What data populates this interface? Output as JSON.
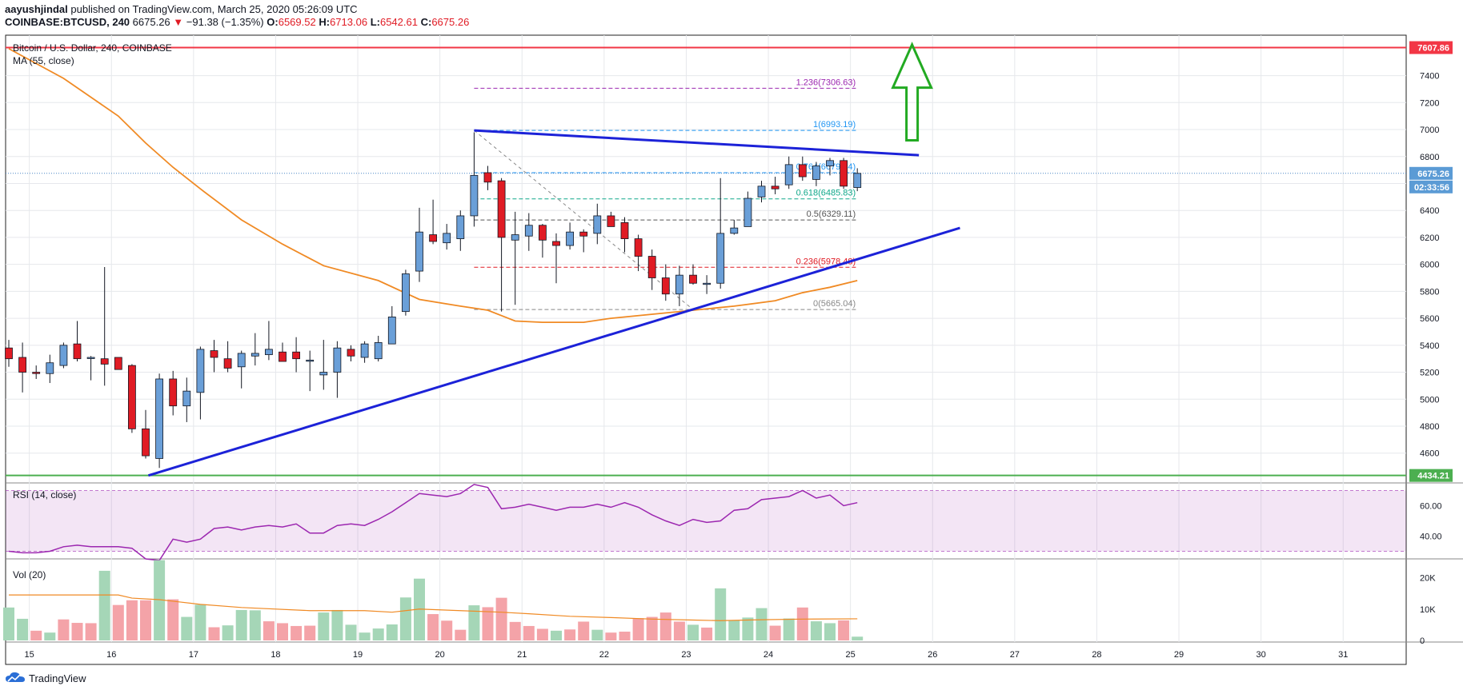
{
  "header": {
    "author": "aayushjindal",
    "published_text": "published on TradingView.com, March 25, 2020 05:26:09 UTC",
    "symbol": "COINBASE:BTCUSD, 240",
    "last": "6675.26",
    "change": "−91.38 (−1.35%)",
    "o_label": "O:",
    "o_value": "6569.52",
    "h_label": "H:",
    "h_value": "6713.06",
    "l_label": "L:",
    "l_value": "6542.61",
    "c_label": "C:",
    "c_value": "6675.26"
  },
  "pane_labels": {
    "main_title": "Bitcoin / U.S. Dollar, 240, COINBASE",
    "ma": "MA (55, close)",
    "rsi": "RSI (14, close)",
    "vol": "Vol (20)"
  },
  "footer": {
    "brand": "TradingView"
  },
  "colors": {
    "up": "#6a9fd8",
    "down": "#e01b24",
    "ma": "#f08a24",
    "trend": "#1c22d8",
    "resistance": "#f23645",
    "support": "#4caf50",
    "arrow": "#22aa22",
    "rsi": "#9c27b0",
    "vol_up": "#a5d6b7",
    "vol_down": "#f4a3a8"
  },
  "chart_data": [
    {
      "type": "candlestick",
      "title": "Bitcoin / U.S. Dollar, 240, COINBASE",
      "ylim": [
        4450,
        7700
      ],
      "y_ticks": [
        4600,
        4800,
        5000,
        5200,
        5400,
        5600,
        5800,
        6000,
        6200,
        6400,
        6600,
        6800,
        7000,
        7200,
        7400
      ],
      "x_ticks": [
        {
          "label": "15",
          "i": 1.5
        },
        {
          "label": "16",
          "i": 7.5
        },
        {
          "label": "17",
          "i": 13.5
        },
        {
          "label": "18",
          "i": 19.5
        },
        {
          "label": "19",
          "i": 25.5
        },
        {
          "label": "20",
          "i": 31.5
        },
        {
          "label": "21",
          "i": 37.5
        },
        {
          "label": "22",
          "i": 43.5
        },
        {
          "label": "23",
          "i": 49.5
        },
        {
          "label": "24",
          "i": 55.5
        },
        {
          "label": "25",
          "i": 61.5
        },
        {
          "label": "26",
          "i": 67.5
        },
        {
          "label": "27",
          "i": 73.5
        },
        {
          "label": "28",
          "i": 79.5
        },
        {
          "label": "29",
          "i": 85.5
        },
        {
          "label": "30",
          "i": 91.5
        },
        {
          "label": "31",
          "i": 97.5
        }
      ],
      "candles": [
        [
          5380,
          5440,
          5240,
          5300
        ],
        [
          5310,
          5420,
          5050,
          5200
        ],
        [
          5200,
          5250,
          5150,
          5190
        ],
        [
          5190,
          5330,
          5120,
          5270
        ],
        [
          5250,
          5420,
          5230,
          5400
        ],
        [
          5410,
          5580,
          5280,
          5300
        ],
        [
          5310,
          5320,
          5140,
          5310
        ],
        [
          5300,
          5980,
          5100,
          5260
        ],
        [
          5310,
          5300,
          5230,
          5220
        ],
        [
          5250,
          5260,
          4750,
          4780
        ],
        [
          4780,
          4920,
          4560,
          4580
        ],
        [
          4560,
          5190,
          4490,
          5150
        ],
        [
          5150,
          5210,
          4880,
          4950
        ],
        [
          4950,
          5160,
          4830,
          5060
        ],
        [
          5050,
          5390,
          4850,
          5370
        ],
        [
          5360,
          5440,
          5200,
          5310
        ],
        [
          5300,
          5430,
          5200,
          5230
        ],
        [
          5240,
          5360,
          5080,
          5340
        ],
        [
          5320,
          5490,
          5250,
          5340
        ],
        [
          5330,
          5580,
          5290,
          5370
        ],
        [
          5350,
          5420,
          5280,
          5280
        ],
        [
          5350,
          5460,
          5200,
          5300
        ],
        [
          5290,
          5360,
          5060,
          5290
        ],
        [
          5180,
          5440,
          5070,
          5200
        ],
        [
          5200,
          5430,
          5010,
          5380
        ],
        [
          5370,
          5400,
          5280,
          5320
        ],
        [
          5310,
          5430,
          5270,
          5410
        ],
        [
          5300,
          5470,
          5280,
          5420
        ],
        [
          5410,
          5690,
          5420,
          5610
        ],
        [
          5650,
          5960,
          5620,
          5930
        ],
        [
          5950,
          6420,
          5870,
          6240
        ],
        [
          6220,
          6480,
          6150,
          6170
        ],
        [
          6160,
          6300,
          6110,
          6230
        ],
        [
          6190,
          6400,
          6100,
          6360
        ],
        [
          6360,
          6980,
          6280,
          6660
        ],
        [
          6680,
          6730,
          6550,
          6610
        ],
        [
          6620,
          6640,
          5650,
          6200
        ],
        [
          6180,
          6390,
          5700,
          6220
        ],
        [
          6210,
          6380,
          6100,
          6290
        ],
        [
          6290,
          6300,
          6050,
          6180
        ],
        [
          6170,
          6230,
          5860,
          6140
        ],
        [
          6140,
          6310,
          6110,
          6240
        ],
        [
          6240,
          6260,
          6090,
          6210
        ],
        [
          6230,
          6450,
          6150,
          6360
        ],
        [
          6360,
          6390,
          6310,
          6280
        ],
        [
          6310,
          6350,
          6090,
          6190
        ],
        [
          6190,
          6220,
          5950,
          6060
        ],
        [
          6060,
          6110,
          5810,
          5900
        ],
        [
          5900,
          6000,
          5730,
          5780
        ],
        [
          5780,
          5990,
          5690,
          5920
        ],
        [
          5920,
          6000,
          5850,
          5860
        ],
        [
          5860,
          5920,
          5780,
          5860
        ],
        [
          5860,
          6640,
          5820,
          6230
        ],
        [
          6230,
          6330,
          6220,
          6270
        ],
        [
          6280,
          6540,
          6280,
          6490
        ],
        [
          6500,
          6620,
          6460,
          6580
        ],
        [
          6580,
          6650,
          6520,
          6560
        ],
        [
          6590,
          6800,
          6560,
          6740
        ],
        [
          6740,
          6800,
          6620,
          6650
        ],
        [
          6630,
          6760,
          6580,
          6730
        ],
        [
          6730,
          6790,
          6660,
          6770
        ],
        [
          6770,
          6790,
          6560,
          6580
        ],
        [
          6570,
          6713,
          6543,
          6675
        ]
      ],
      "ma55": [
        [
          0,
          7600
        ],
        [
          4,
          7380
        ],
        [
          8,
          7100
        ],
        [
          10,
          6900
        ],
        [
          12,
          6720
        ],
        [
          14,
          6560
        ],
        [
          17,
          6330
        ],
        [
          20,
          6150
        ],
        [
          23,
          5990
        ],
        [
          27,
          5880
        ],
        [
          30,
          5740
        ],
        [
          33,
          5690
        ],
        [
          35,
          5660
        ],
        [
          37,
          5580
        ],
        [
          39,
          5570
        ],
        [
          42,
          5570
        ],
        [
          44,
          5600
        ],
        [
          46,
          5620
        ],
        [
          48,
          5640
        ],
        [
          50,
          5660
        ],
        [
          53,
          5690
        ],
        [
          56,
          5730
        ],
        [
          58,
          5790
        ],
        [
          60,
          5830
        ],
        [
          62,
          5880
        ]
      ],
      "support_line": {
        "price": 4434.21,
        "label": "4434.21"
      },
      "resistance_line": {
        "price": 7607.86,
        "label": "7607.86"
      },
      "last_price": {
        "price": 6675.26,
        "label": "6675.26",
        "timer": "02:33:56"
      },
      "fib_levels": [
        {
          "ratio": 1.236,
          "label": "1.236(7306.63)",
          "price": 7306.63,
          "color": "#9c27b0"
        },
        {
          "ratio": 1,
          "label": "1(6993.19)",
          "price": 6993.19,
          "color": "#2196f3"
        },
        {
          "ratio": 0.764,
          "label": "0.764(6679.74)",
          "price": 6679.74,
          "color": "#2196f3"
        },
        {
          "ratio": 0.618,
          "label": "0.618(6485.83)",
          "price": 6485.83,
          "color": "#11a88a"
        },
        {
          "ratio": 0.5,
          "label": "0.5(6329.11)",
          "price": 6329.11,
          "color": "#555555"
        },
        {
          "ratio": 0.236,
          "label": "0.236(5978.48)",
          "price": 5978.48,
          "color": "#e01b24"
        },
        {
          "ratio": 0,
          "label": "0(5665.04)",
          "price": 5665.04,
          "color": "#888888"
        }
      ],
      "fib_range": {
        "from_i": 34,
        "to_i": 62
      },
      "fib_swing": [
        [
          34,
          6993.19
        ],
        [
          50,
          5665.04
        ]
      ],
      "trendline_upper": [
        [
          34,
          6993.19
        ],
        [
          66.5,
          6810
        ]
      ],
      "trendline_lower": [
        [
          10.2,
          4434.21
        ],
        [
          69.5,
          6270
        ]
      ],
      "arrow": {
        "i": 66,
        "from": 6920,
        "to": 7630
      }
    },
    {
      "type": "line",
      "title": "RSI (14, close)",
      "ylim": [
        25,
        75
      ],
      "y_ticks": [
        40,
        60
      ],
      "band": [
        30,
        70
      ],
      "values": [
        [
          0,
          30
        ],
        [
          1,
          29
        ],
        [
          2,
          29
        ],
        [
          3,
          30
        ],
        [
          4,
          33
        ],
        [
          5,
          34
        ],
        [
          6,
          33
        ],
        [
          7,
          33
        ],
        [
          8,
          33
        ],
        [
          9,
          32
        ],
        [
          10,
          25
        ],
        [
          11,
          24
        ],
        [
          12,
          38
        ],
        [
          13,
          36
        ],
        [
          14,
          38
        ],
        [
          15,
          45
        ],
        [
          16,
          46
        ],
        [
          17,
          44
        ],
        [
          18,
          46
        ],
        [
          19,
          47
        ],
        [
          20,
          46
        ],
        [
          21,
          48
        ],
        [
          22,
          42
        ],
        [
          23,
          42
        ],
        [
          24,
          47
        ],
        [
          25,
          48
        ],
        [
          26,
          47
        ],
        [
          27,
          51
        ],
        [
          28,
          56
        ],
        [
          29,
          62
        ],
        [
          30,
          68
        ],
        [
          31,
          67
        ],
        [
          32,
          66
        ],
        [
          33,
          68
        ],
        [
          34,
          74
        ],
        [
          35,
          72
        ],
        [
          36,
          58
        ],
        [
          37,
          59
        ],
        [
          38,
          61
        ],
        [
          39,
          59
        ],
        [
          40,
          57
        ],
        [
          41,
          59
        ],
        [
          42,
          59
        ],
        [
          43,
          61
        ],
        [
          44,
          59
        ],
        [
          45,
          62
        ],
        [
          46,
          59
        ],
        [
          47,
          54
        ],
        [
          48,
          50
        ],
        [
          49,
          47
        ],
        [
          50,
          51
        ],
        [
          51,
          49
        ],
        [
          52,
          50
        ],
        [
          53,
          57
        ],
        [
          54,
          58
        ],
        [
          55,
          64
        ],
        [
          56,
          65
        ],
        [
          57,
          66
        ],
        [
          58,
          70
        ],
        [
          59,
          65
        ],
        [
          60,
          67
        ],
        [
          61,
          60
        ],
        [
          62,
          62
        ]
      ]
    },
    {
      "type": "bar",
      "title": "Vol (20)",
      "ylim": [
        0,
        26000
      ],
      "y_ticks": [
        0,
        10000,
        20000
      ],
      "y_tick_labels": [
        "0",
        "10K",
        "20K"
      ],
      "values": [
        [
          10500,
          0
        ],
        [
          6900,
          0
        ],
        [
          3100,
          1
        ],
        [
          2500,
          0
        ],
        [
          6700,
          1
        ],
        [
          5600,
          1
        ],
        [
          5500,
          1
        ],
        [
          22200,
          0
        ],
        [
          11300,
          1
        ],
        [
          12800,
          1
        ],
        [
          12800,
          1
        ],
        [
          25600,
          0
        ],
        [
          13100,
          1
        ],
        [
          7500,
          0
        ],
        [
          11400,
          0
        ],
        [
          4200,
          1
        ],
        [
          4800,
          0
        ],
        [
          9700,
          0
        ],
        [
          9600,
          0
        ],
        [
          6100,
          1
        ],
        [
          5500,
          1
        ],
        [
          4600,
          1
        ],
        [
          4700,
          1
        ],
        [
          8900,
          0
        ],
        [
          9700,
          0
        ],
        [
          5000,
          0
        ],
        [
          2500,
          0
        ],
        [
          3800,
          0
        ],
        [
          5100,
          0
        ],
        [
          13700,
          0
        ],
        [
          19700,
          0
        ],
        [
          8400,
          1
        ],
        [
          6300,
          1
        ],
        [
          3400,
          1
        ],
        [
          11200,
          0
        ],
        [
          10600,
          1
        ],
        [
          13600,
          1
        ],
        [
          5900,
          1
        ],
        [
          4600,
          1
        ],
        [
          3700,
          1
        ],
        [
          3100,
          0
        ],
        [
          3500,
          1
        ],
        [
          6000,
          1
        ],
        [
          3400,
          0
        ],
        [
          2500,
          1
        ],
        [
          2800,
          1
        ],
        [
          7100,
          1
        ],
        [
          7500,
          1
        ],
        [
          8900,
          1
        ],
        [
          6000,
          1
        ],
        [
          5000,
          0
        ],
        [
          4100,
          1
        ],
        [
          16600,
          0
        ],
        [
          6500,
          0
        ],
        [
          7300,
          0
        ],
        [
          10300,
          0
        ],
        [
          4700,
          1
        ],
        [
          7000,
          0
        ],
        [
          10500,
          1
        ],
        [
          6100,
          0
        ],
        [
          5500,
          0
        ],
        [
          6400,
          1
        ],
        [
          1200,
          0
        ]
      ],
      "ma": [
        [
          0,
          14500
        ],
        [
          8,
          14500
        ],
        [
          9,
          13500
        ],
        [
          11,
          13000
        ],
        [
          12,
          12500
        ],
        [
          14,
          11500
        ],
        [
          17,
          10500
        ],
        [
          22,
          9500
        ],
        [
          26,
          9500
        ],
        [
          28,
          9000
        ],
        [
          30,
          10000
        ],
        [
          33,
          9500
        ],
        [
          36,
          9000
        ],
        [
          38,
          8500
        ],
        [
          41,
          7700
        ],
        [
          44,
          7300
        ],
        [
          47,
          6800
        ],
        [
          50,
          6500
        ],
        [
          52,
          6300
        ],
        [
          55,
          6600
        ],
        [
          58,
          6800
        ],
        [
          62,
          6900
        ]
      ]
    }
  ]
}
